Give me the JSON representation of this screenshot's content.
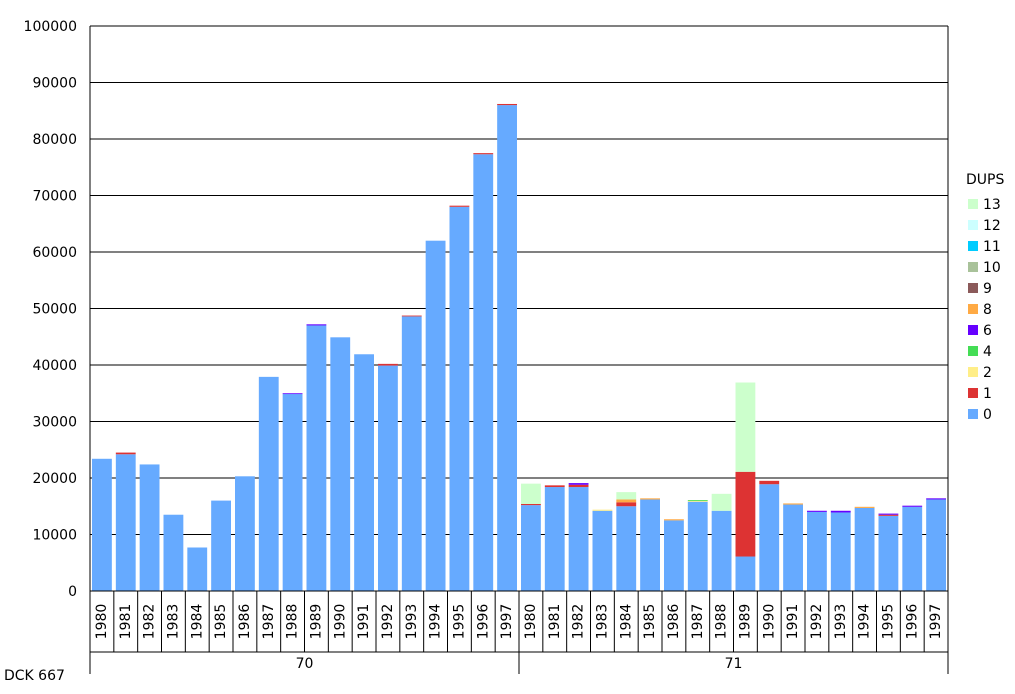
{
  "footer_label": "DCK 667",
  "chart_data": {
    "type": "bar",
    "stacked": true,
    "ylim": [
      0,
      100000
    ],
    "yticks": [
      0,
      10000,
      20000,
      30000,
      40000,
      50000,
      60000,
      70000,
      80000,
      90000,
      100000
    ],
    "grid": true,
    "legend_position": "right",
    "legend_title": "DUPS",
    "groups": [
      "70",
      "71"
    ],
    "categories": [
      "1980",
      "1981",
      "1982",
      "1983",
      "1984",
      "1985",
      "1986",
      "1987",
      "1988",
      "1989",
      "1990",
      "1991",
      "1992",
      "1993",
      "1994",
      "1995",
      "1996",
      "1997"
    ],
    "series": [
      {
        "name": "0",
        "color": "#66aaff",
        "values": [
          [
            23400,
            24200,
            22400,
            13500,
            7700,
            16000,
            20300,
            37900,
            34900,
            47000,
            44900,
            41900,
            39900,
            48600,
            62000,
            68000,
            77300,
            86000
          ],
          [
            15200,
            18400,
            18400,
            14200,
            15000,
            16200,
            12500,
            15800,
            14200,
            6100,
            18900,
            15300,
            14000,
            13900,
            14700,
            13300,
            14900,
            16200
          ]
        ]
      },
      {
        "name": "1",
        "color": "#dd3333",
        "values": [
          [
            0,
            300,
            0,
            0,
            0,
            0,
            0,
            0,
            0,
            0,
            0,
            0,
            300,
            150,
            0,
            200,
            200,
            200
          ],
          [
            200,
            300,
            400,
            0,
            700,
            0,
            0,
            0,
            0,
            15000,
            600,
            0,
            0,
            0,
            0,
            200,
            0,
            0
          ]
        ]
      },
      {
        "name": "2",
        "color": "#ffee88",
        "values": [
          [
            0,
            0,
            0,
            0,
            0,
            0,
            0,
            0,
            0,
            0,
            0,
            0,
            0,
            0,
            0,
            0,
            0,
            0
          ],
          [
            0,
            0,
            0,
            200,
            0,
            0,
            0,
            200,
            0,
            0,
            0,
            0,
            0,
            0,
            0,
            0,
            0,
            0
          ]
        ]
      },
      {
        "name": "4",
        "color": "#44dd55",
        "values": [
          [
            0,
            0,
            0,
            0,
            0,
            0,
            0,
            0,
            0,
            0,
            0,
            0,
            0,
            0,
            0,
            0,
            0,
            0
          ],
          [
            0,
            0,
            0,
            0,
            0,
            0,
            0,
            100,
            0,
            0,
            0,
            0,
            0,
            0,
            0,
            0,
            0,
            0
          ]
        ]
      },
      {
        "name": "6",
        "color": "#6600ff",
        "values": [
          [
            0,
            0,
            0,
            0,
            0,
            0,
            0,
            0,
            100,
            200,
            0,
            0,
            0,
            0,
            0,
            0,
            0,
            0
          ],
          [
            0,
            0,
            300,
            0,
            0,
            0,
            0,
            0,
            0,
            0,
            0,
            0,
            200,
            300,
            0,
            200,
            200,
            200
          ]
        ]
      },
      {
        "name": "8",
        "color": "#ffaa44",
        "values": [
          [
            0,
            0,
            0,
            0,
            0,
            0,
            0,
            0,
            0,
            0,
            0,
            0,
            0,
            0,
            0,
            0,
            0,
            0
          ],
          [
            0,
            0,
            0,
            0,
            500,
            200,
            200,
            0,
            0,
            0,
            0,
            200,
            0,
            0,
            200,
            0,
            0,
            0
          ]
        ]
      },
      {
        "name": "9",
        "color": "#8b5a5a",
        "values": [
          [
            0,
            0,
            0,
            0,
            0,
            0,
            0,
            0,
            0,
            0,
            0,
            0,
            0,
            0,
            0,
            0,
            0,
            0
          ],
          [
            0,
            0,
            0,
            0,
            0,
            0,
            0,
            0,
            0,
            0,
            0,
            0,
            0,
            0,
            0,
            0,
            0,
            0
          ]
        ]
      },
      {
        "name": "10",
        "color": "#a9c29a",
        "values": [
          [
            0,
            0,
            0,
            0,
            0,
            0,
            0,
            0,
            0,
            0,
            0,
            0,
            0,
            0,
            0,
            0,
            0,
            0
          ],
          [
            0,
            0,
            0,
            0,
            0,
            0,
            0,
            0,
            0,
            0,
            0,
            0,
            0,
            0,
            0,
            0,
            0,
            0
          ]
        ]
      },
      {
        "name": "11",
        "color": "#00ccff",
        "values": [
          [
            0,
            0,
            0,
            0,
            0,
            0,
            0,
            0,
            0,
            0,
            0,
            0,
            0,
            0,
            0,
            0,
            0,
            0
          ],
          [
            0,
            0,
            0,
            0,
            0,
            0,
            0,
            0,
            0,
            0,
            0,
            0,
            0,
            0,
            0,
            0,
            0,
            0
          ]
        ]
      },
      {
        "name": "12",
        "color": "#ccffff",
        "values": [
          [
            0,
            0,
            0,
            0,
            0,
            0,
            0,
            0,
            0,
            0,
            0,
            0,
            0,
            0,
            0,
            0,
            0,
            0
          ],
          [
            0,
            0,
            0,
            0,
            0,
            0,
            0,
            0,
            0,
            0,
            0,
            0,
            0,
            0,
            0,
            0,
            0,
            0
          ]
        ]
      },
      {
        "name": "13",
        "color": "#ccffcc",
        "values": [
          [
            0,
            0,
            0,
            0,
            0,
            0,
            0,
            0,
            0,
            0,
            0,
            0,
            0,
            0,
            0,
            0,
            0,
            0
          ],
          [
            3600,
            0,
            0,
            0,
            1300,
            0,
            0,
            0,
            3000,
            15800,
            0,
            0,
            0,
            0,
            0,
            0,
            0,
            0
          ]
        ]
      }
    ]
  }
}
